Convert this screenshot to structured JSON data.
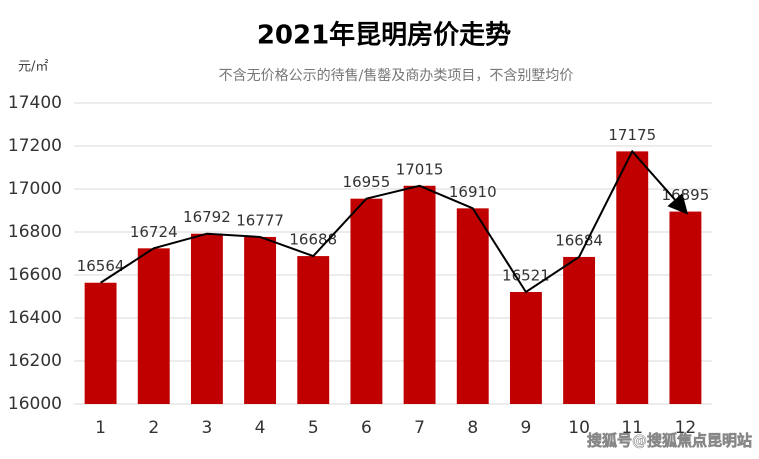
{
  "chart_data": {
    "type": "bar",
    "title": "2021年昆明房价走势",
    "subtitle": "不含无价格公示的待售/售罄及商办类项目，不含别墅均价",
    "unit_label": "元/㎡",
    "categories": [
      "1",
      "2",
      "3",
      "4",
      "5",
      "6",
      "7",
      "8",
      "9",
      "10",
      "11",
      "12"
    ],
    "values": [
      16564,
      16724,
      16792,
      16777,
      16688,
      16955,
      17015,
      16910,
      16521,
      16684,
      17175,
      16895
    ],
    "color": "#c00000",
    "line_overlay": true,
    "line_color": "#000000",
    "ylim": [
      16000,
      17400
    ],
    "yticks": [
      16000,
      16200,
      16400,
      16600,
      16800,
      17000,
      17200,
      17400
    ],
    "grid": true,
    "watermark": "搜狐号@搜狐焦点昆明站"
  }
}
